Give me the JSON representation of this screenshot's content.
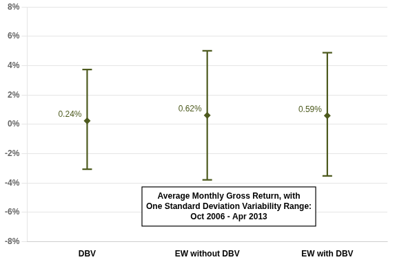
{
  "chart_data": {
    "type": "errorbar",
    "categories": [
      "DBV",
      "EW without DBV",
      "EW with DBV"
    ],
    "values": [
      0.0024,
      0.0062,
      0.0059
    ],
    "value_labels": [
      "0.24%",
      "0.62%",
      "0.59%"
    ],
    "upper_errors": [
      0.035,
      0.044,
      0.043
    ],
    "lower_errors": [
      0.033,
      0.044,
      0.041
    ],
    "color": "#4d5a1e",
    "marker": "diamond",
    "data_labels": true,
    "ylim": [
      -0.08,
      0.08
    ],
    "yticks": [
      {
        "value": -0.08,
        "label": "-8%"
      },
      {
        "value": -0.06,
        "label": "-6%"
      },
      {
        "value": -0.04,
        "label": "-4%"
      },
      {
        "value": -0.02,
        "label": "-2%"
      },
      {
        "value": 0.0,
        "label": "0%"
      },
      {
        "value": 0.02,
        "label": "2%"
      },
      {
        "value": 0.04,
        "label": "4%"
      },
      {
        "value": 0.06,
        "label": "6%"
      },
      {
        "value": 0.08,
        "label": "8%"
      }
    ],
    "grid": true,
    "annotation": "Average Monthly Gross Return, with\nOne Standard Deviation Variability Range:\nOct 2006 - Apr 2013"
  }
}
